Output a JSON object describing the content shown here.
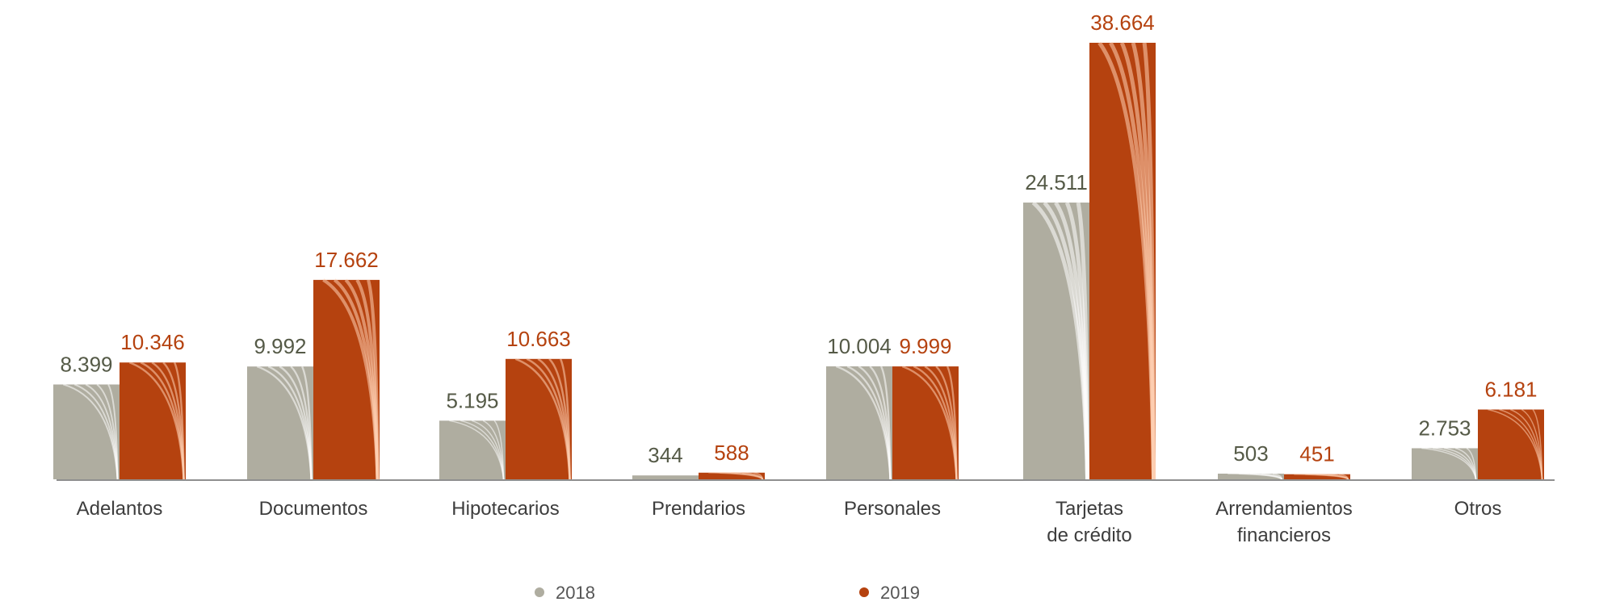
{
  "chart_data": {
    "type": "bar",
    "categories": [
      [
        "Adelantos"
      ],
      [
        "Documentos"
      ],
      [
        "Hipotecarios"
      ],
      [
        "Prendarios"
      ],
      [
        "Personales"
      ],
      [
        "Tarjetas",
        "de crédito"
      ],
      [
        "Arrendamientos",
        "financieros"
      ],
      [
        "Otros"
      ]
    ],
    "series": [
      {
        "name": "2018",
        "color": "#afada0",
        "label_color": "#555a47",
        "values": [
          8399,
          9992,
          5195,
          344,
          10004,
          24511,
          503,
          2753
        ],
        "value_labels": [
          "8.399",
          "9.992",
          "5.195",
          "344",
          "10.004",
          "24.511",
          "503",
          "2.753"
        ]
      },
      {
        "name": "2019",
        "color": "#b5420f",
        "label_color": "#b5420f",
        "values": [
          10346,
          17662,
          10663,
          588,
          9999,
          38664,
          451,
          6181
        ],
        "value_labels": [
          "10.346",
          "17.662",
          "10.663",
          "588",
          "9.999",
          "38.664",
          "451",
          "6.181"
        ]
      }
    ],
    "ylim": [
      0,
      38664
    ],
    "grid": false,
    "legend": {
      "position": "bottom"
    }
  }
}
